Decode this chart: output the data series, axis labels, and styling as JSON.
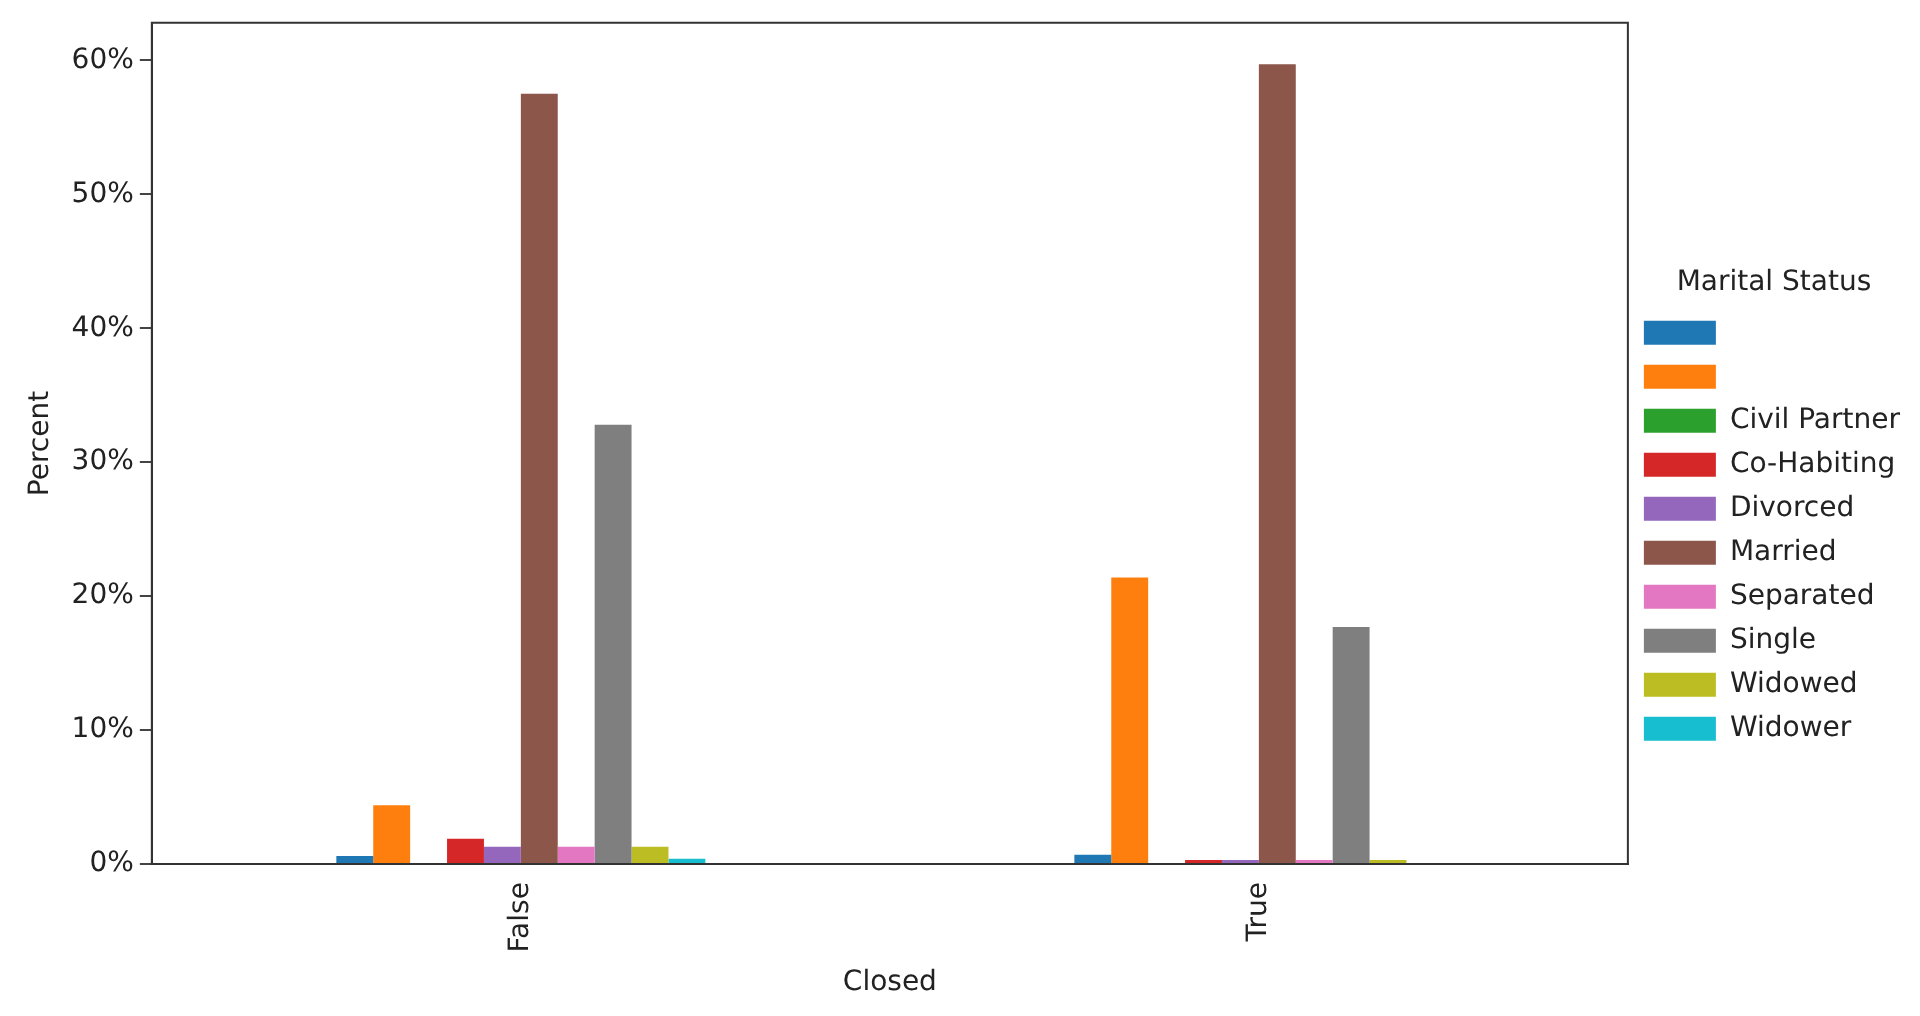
{
  "chart_data": {
    "type": "bar",
    "xlabel": "Closed",
    "ylabel": "Percent",
    "legend_title": "Marital Status",
    "categories": [
      "False",
      "True"
    ],
    "series": [
      {
        "color": "#1f77b4",
        "values": [
          0.6,
          0.7
        ]
      },
      {
        "color": "#ff7f0e",
        "values": [
          4.4,
          21.4
        ]
      },
      {
        "name": "Civil Partner",
        "color": "#2ca02c",
        "values": [
          0,
          0
        ]
      },
      {
        "name": "Co-Habiting",
        "color": "#d62728",
        "values": [
          1.9,
          0.3
        ]
      },
      {
        "name": "Divorced",
        "color": "#9467bd",
        "values": [
          1.3,
          0.3
        ]
      },
      {
        "name": "Married",
        "color": "#8c564b",
        "values": [
          57.5,
          59.7
        ]
      },
      {
        "name": "Separated",
        "color": "#e377c2",
        "values": [
          1.3,
          0.3
        ]
      },
      {
        "name": "Single",
        "color": "#7f7f7f",
        "values": [
          32.8,
          17.7
        ]
      },
      {
        "name": "Widowed",
        "color": "#bcbd22",
        "values": [
          1.3,
          0.3
        ]
      },
      {
        "name": "Widower",
        "color": "#17becf",
        "values": [
          0.4,
          0
        ]
      }
    ],
    "ylim": [
      0,
      62.8
    ],
    "yticks": [
      {
        "value": 0,
        "label": "0%"
      },
      {
        "value": 10,
        "label": "10%"
      },
      {
        "value": 20,
        "label": "20%"
      },
      {
        "value": 30,
        "label": "30%"
      },
      {
        "value": 40,
        "label": "40%"
      },
      {
        "value": 50,
        "label": "50%"
      },
      {
        "value": 60,
        "label": "60%"
      }
    ],
    "grid": false,
    "legend": "right"
  }
}
